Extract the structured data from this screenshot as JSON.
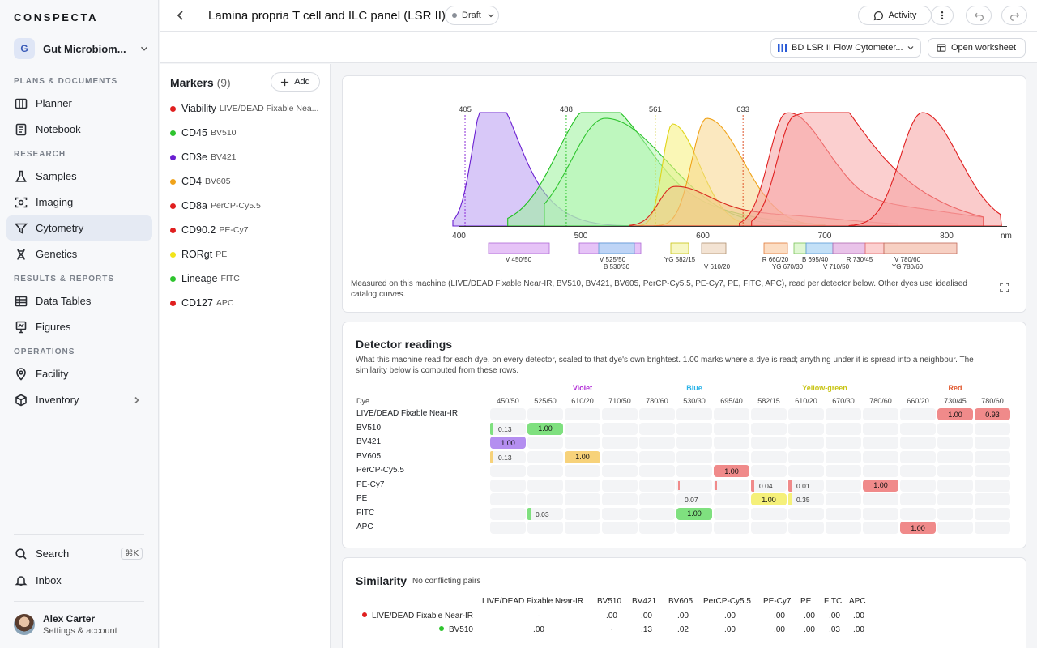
{
  "app": {
    "name": "CONSPECTA"
  },
  "workspace": {
    "initial": "G",
    "name": "Gut Microbiom..."
  },
  "sidebar": {
    "sections": {
      "plans": "PLANS & DOCUMENTS",
      "research": "RESEARCH",
      "results": "RESULTS & REPORTS",
      "operations": "OPERATIONS"
    },
    "items": {
      "planner": "Planner",
      "notebook": "Notebook",
      "samples": "Samples",
      "imaging": "Imaging",
      "cytometry": "Cytometry",
      "genetics": "Genetics",
      "data_tables": "Data Tables",
      "figures": "Figures",
      "facility": "Facility",
      "inventory": "Inventory"
    },
    "search": "Search",
    "search_shortcut": "⌘K",
    "inbox": "Inbox"
  },
  "user": {
    "name": "Alex Carter",
    "subtitle": "Settings & account"
  },
  "header": {
    "title": "Lamina propria T cell and ILC panel (LSR II)",
    "status": "Draft",
    "activity": "Activity"
  },
  "subbar": {
    "instrument": "BD LSR II Flow Cytometer...",
    "open_worksheet": "Open worksheet"
  },
  "markers": {
    "title": "Markers",
    "count": "(9)",
    "add": "Add",
    "items": [
      {
        "name": "Viability",
        "dye": "LIVE/DEAD Fixable Nea...",
        "color": "#e01f1f"
      },
      {
        "name": "CD45",
        "dye": "BV510",
        "color": "#2ec42e"
      },
      {
        "name": "CD3e",
        "dye": "BV421",
        "color": "#6a1fd1"
      },
      {
        "name": "CD4",
        "dye": "BV605",
        "color": "#f0a31a"
      },
      {
        "name": "CD8a",
        "dye": "PerCP-Cy5.5",
        "color": "#e01f1f"
      },
      {
        "name": "CD90.2",
        "dye": "PE-Cy7",
        "color": "#e01f1f"
      },
      {
        "name": "RORgt",
        "dye": "PE",
        "color": "#f2e41a"
      },
      {
        "name": "Lineage",
        "dye": "FITC",
        "color": "#2ec42e"
      },
      {
        "name": "CD127",
        "dye": "APC",
        "color": "#e01f1f"
      }
    ]
  },
  "spectrum": {
    "lasers": [
      "405",
      "488",
      "561",
      "633"
    ],
    "x_ticks": [
      "400",
      "500",
      "600",
      "700",
      "800"
    ],
    "x_unit": "nm",
    "filters": [
      "V 450/50",
      "V 525/50",
      "B 530/30",
      "YG 582/15",
      "V 610/20",
      "R 660/20",
      "YG 670/30",
      "B 695/40",
      "V 710/50",
      "R 730/45",
      "V 780/60",
      "YG 780/60"
    ],
    "caption": "Measured on this machine (LIVE/DEAD Fixable Near-IR, BV510, BV421, BV605, PerCP-Cy5.5, PE-Cy7, PE, FITC, APC), read per detector below. Other dyes use idealised catalog curves."
  },
  "detector": {
    "title": "Detector readings",
    "description": "What this machine read for each dye, on every detector, scaled to that dye's own brightest. 1.00 marks where a dye is read; anything under it is spread into a neighbour. The similarity below is computed from these rows.",
    "groups": [
      {
        "label": "Violet",
        "color": "#b02bd6"
      },
      {
        "label": "Blue",
        "color": "#2bb3e8"
      },
      {
        "label": "Yellow-green",
        "color": "#c8c414"
      },
      {
        "label": "Red",
        "color": "#e0552b"
      }
    ],
    "dye_header": "Dye",
    "columns": [
      "450/50",
      "525/50",
      "610/20",
      "710/50",
      "780/60",
      "530/30",
      "695/40",
      "582/15",
      "610/20",
      "670/30",
      "780/60",
      "660/20",
      "730/45",
      "780/60"
    ],
    "rows": [
      {
        "dye": "LIVE/DEAD Fixable Near-IR",
        "cells": [
          {
            "c": 12,
            "v": "1.00",
            "color": "#f08a8a"
          },
          {
            "c": 13,
            "v": "0.93",
            "color": "#f08a8a"
          }
        ]
      },
      {
        "dye": "BV510",
        "cells": [
          {
            "c": 0,
            "v": "0.13",
            "color": "#7fe07f",
            "small": true
          },
          {
            "c": 1,
            "v": "1.00",
            "color": "#7fe07f"
          }
        ]
      },
      {
        "dye": "BV421",
        "cells": [
          {
            "c": 0,
            "v": "1.00",
            "color": "#b48ef0"
          }
        ]
      },
      {
        "dye": "BV605",
        "cells": [
          {
            "c": 0,
            "v": "0.13",
            "color": "#f7d27a",
            "small": true
          },
          {
            "c": 2,
            "v": "1.00",
            "color": "#f7d27a"
          }
        ]
      },
      {
        "dye": "PerCP-Cy5.5",
        "cells": [
          {
            "c": 6,
            "v": "1.00",
            "color": "#f08a8a"
          }
        ]
      },
      {
        "dye": "PE-Cy7",
        "cells": [
          {
            "c": 5,
            "v": "",
            "color": "#f08a8a",
            "tick": true
          },
          {
            "c": 6,
            "v": "",
            "color": "#f08a8a",
            "tick": true
          },
          {
            "c": 7,
            "v": "0.04",
            "color": "#f08a8a",
            "small": true
          },
          {
            "c": 8,
            "v": "0.01",
            "color": "#f08a8a",
            "small": true
          },
          {
            "c": 10,
            "v": "1.00",
            "color": "#f08a8a"
          }
        ]
      },
      {
        "dye": "PE",
        "cells": [
          {
            "c": 5,
            "v": "0.07",
            "color": "#f5f07a",
            "small": true,
            "nobar": true
          },
          {
            "c": 7,
            "v": "1.00",
            "color": "#f5f07a"
          },
          {
            "c": 8,
            "v": "0.35",
            "color": "#f5f07a",
            "small": true
          }
        ]
      },
      {
        "dye": "FITC",
        "cells": [
          {
            "c": 1,
            "v": "0.03",
            "color": "#7fe07f",
            "small": true
          },
          {
            "c": 5,
            "v": "1.00",
            "color": "#7fe07f"
          }
        ]
      },
      {
        "dye": "APC",
        "cells": [
          {
            "c": 11,
            "v": "1.00",
            "color": "#f08a8a"
          }
        ]
      }
    ]
  },
  "similarity": {
    "title": "Similarity",
    "subtitle": "No conflicting pairs",
    "columns": [
      "LIVE/DEAD Fixable Near-IR",
      "BV510",
      "BV421",
      "BV605",
      "PerCP-Cy5.5",
      "PE-Cy7",
      "PE",
      "FITC",
      "APC"
    ],
    "rows": [
      {
        "dye": "LIVE/DEAD Fixable Near-IR",
        "color": "#e01f1f",
        "values": [
          "·",
          ".00",
          ".00",
          ".00",
          ".00",
          ".00",
          ".00",
          ".00",
          ".00"
        ]
      },
      {
        "dye": "BV510",
        "color": "#2ec42e",
        "values": [
          ".00",
          "·",
          ".13",
          ".02",
          ".00",
          ".00",
          ".00",
          ".03",
          ".00"
        ]
      }
    ]
  }
}
